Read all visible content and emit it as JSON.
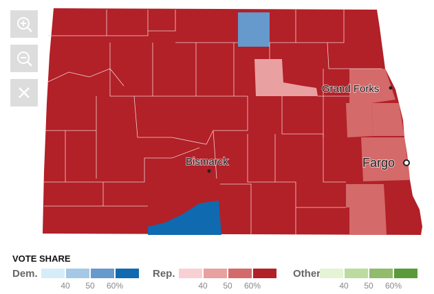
{
  "map": {
    "cities": [
      "Grand Forks",
      "Bismarck",
      "Fargo"
    ]
  },
  "legend": {
    "title": "VOTE SHARE",
    "groups": [
      {
        "label": "Dem.",
        "colors": [
          "#d6ecf8",
          "#a5c8e6",
          "#6699cc",
          "#0f6ab0"
        ],
        "ticks": [
          "40",
          "50",
          "60%"
        ]
      },
      {
        "label": "Rep.",
        "colors": [
          "#f8d0d4",
          "#e8a0a0",
          "#d46a6a",
          "#b22028"
        ],
        "ticks": [
          "40",
          "50",
          "60%"
        ]
      },
      {
        "label": "Other",
        "colors": [
          "#e4f4d4",
          "#bcdba0",
          "#90bc6c",
          "#5a9a3a"
        ],
        "ticks": [
          "40",
          "50",
          "60%"
        ]
      }
    ]
  }
}
